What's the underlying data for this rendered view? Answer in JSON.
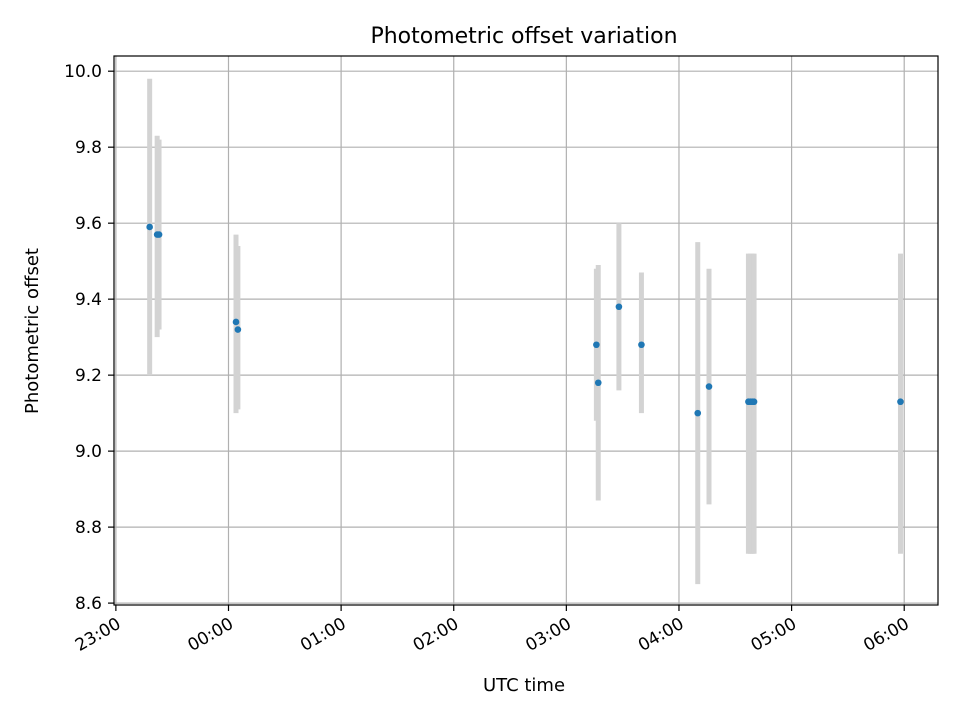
{
  "chart_data": {
    "type": "scatter",
    "title": "Photometric offset variation",
    "xlabel": "UTC time",
    "ylabel": "Photometric offset",
    "x_tick_labels": [
      "23:00",
      "00:00",
      "01:00",
      "02:00",
      "03:00",
      "04:00",
      "05:00",
      "06:00"
    ],
    "y_tick_labels": [
      "8.6",
      "8.8",
      "9.0",
      "9.2",
      "9.4",
      "9.6",
      "9.8",
      "10.0"
    ],
    "y_ticks": [
      8.6,
      8.8,
      9.0,
      9.2,
      9.4,
      9.6,
      9.8,
      10.0
    ],
    "xlim": [
      "22:59",
      "06:18"
    ],
    "ylim": [
      8.595,
      10.04
    ],
    "grid": true,
    "point_color": "#1f77b4",
    "errorbar_color": "#d3d3d3",
    "points": [
      {
        "x": "23:18",
        "y": 9.59,
        "low": 9.2,
        "high": 9.98
      },
      {
        "x": "23:22",
        "y": 9.57,
        "low": 9.3,
        "high": 9.83
      },
      {
        "x": "23:23",
        "y": 9.57,
        "low": 9.32,
        "high": 9.82
      },
      {
        "x": "00:04",
        "y": 9.34,
        "low": 9.1,
        "high": 9.57
      },
      {
        "x": "00:05",
        "y": 9.32,
        "low": 9.11,
        "high": 9.54
      },
      {
        "x": "03:16",
        "y": 9.28,
        "low": 9.08,
        "high": 9.48
      },
      {
        "x": "03:17",
        "y": 9.18,
        "low": 8.87,
        "high": 9.49
      },
      {
        "x": "03:28",
        "y": 9.38,
        "low": 9.16,
        "high": 9.6
      },
      {
        "x": "03:40",
        "y": 9.28,
        "low": 9.1,
        "high": 9.47
      },
      {
        "x": "04:10",
        "y": 9.1,
        "low": 8.65,
        "high": 9.55
      },
      {
        "x": "04:16",
        "y": 9.17,
        "low": 8.86,
        "high": 9.48
      },
      {
        "x": "04:37",
        "y": 9.13,
        "low": 8.73,
        "high": 9.52
      },
      {
        "x": "04:38",
        "y": 9.13,
        "low": 8.73,
        "high": 9.52
      },
      {
        "x": "04:39",
        "y": 9.13,
        "low": 8.73,
        "high": 9.52
      },
      {
        "x": "04:40",
        "y": 9.13,
        "low": 8.73,
        "high": 9.52
      },
      {
        "x": "05:58",
        "y": 9.13,
        "low": 8.73,
        "high": 9.52
      }
    ]
  }
}
